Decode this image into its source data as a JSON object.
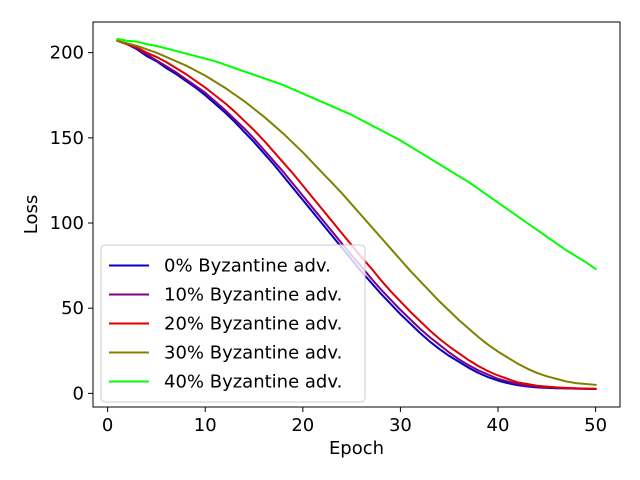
{
  "chart_data": {
    "type": "line",
    "title": "",
    "xlabel": "Epoch",
    "ylabel": "Loss",
    "xlim": [
      -1.5,
      52.5
    ],
    "ylim": [
      -8,
      218
    ],
    "xticks": [
      0,
      10,
      20,
      30,
      40,
      50
    ],
    "yticks": [
      0,
      50,
      100,
      150,
      200
    ],
    "grid": false,
    "legend_position": "lower-left",
    "x": [
      1,
      2,
      3,
      4,
      5,
      6,
      7,
      8,
      9,
      10,
      11,
      12,
      13,
      14,
      15,
      16,
      17,
      18,
      19,
      20,
      21,
      22,
      23,
      24,
      25,
      26,
      27,
      28,
      29,
      30,
      31,
      32,
      33,
      34,
      35,
      36,
      37,
      38,
      39,
      40,
      41,
      42,
      43,
      44,
      45,
      46,
      47,
      48,
      49,
      50
    ],
    "series": [
      {
        "name": "0% Byzantine adv.",
        "color": "#0000cc",
        "values": [
          207.0,
          205.0,
          202.0,
          198.0,
          195.0,
          191.0,
          187.5,
          183.5,
          179.5,
          175.0,
          170.0,
          165.0,
          159.5,
          153.5,
          147.5,
          141.0,
          134.5,
          127.5,
          120.5,
          113.5,
          106.5,
          99.5,
          92.5,
          85.5,
          78.5,
          71.5,
          65.0,
          58.5,
          52.5,
          46.5,
          41.0,
          35.5,
          30.5,
          26.0,
          22.0,
          18.5,
          15.0,
          12.0,
          9.5,
          7.5,
          6.0,
          4.8,
          4.0,
          3.5,
          3.2,
          3.0,
          2.9,
          2.8,
          2.7,
          2.6
        ]
      },
      {
        "name": "10% Byzantine adv.",
        "color": "#800080",
        "values": [
          207.0,
          205.0,
          202.5,
          199.0,
          195.5,
          192.0,
          188.5,
          184.5,
          180.5,
          176.5,
          171.5,
          166.5,
          161.0,
          155.5,
          149.5,
          143.0,
          136.5,
          130.0,
          123.0,
          116.0,
          109.0,
          102.0,
          95.0,
          88.0,
          81.0,
          74.5,
          67.5,
          61.0,
          55.0,
          49.0,
          43.5,
          38.0,
          33.0,
          28.5,
          24.0,
          20.0,
          16.5,
          13.5,
          11.0,
          8.5,
          7.0,
          5.5,
          4.5,
          4.0,
          3.5,
          3.2,
          3.0,
          2.8,
          2.7,
          2.6
        ]
      },
      {
        "name": "20% Byzantine adv.",
        "color": "#e00000",
        "values": [
          207.0,
          205.0,
          203.0,
          200.0,
          197.5,
          194.5,
          191.0,
          187.5,
          183.5,
          179.5,
          175.0,
          170.5,
          165.5,
          160.0,
          154.5,
          148.5,
          142.0,
          135.5,
          129.0,
          122.0,
          115.0,
          108.0,
          101.0,
          94.0,
          87.0,
          80.0,
          73.5,
          66.5,
          60.0,
          54.0,
          48.0,
          42.5,
          37.0,
          32.0,
          27.5,
          23.5,
          19.5,
          16.0,
          13.0,
          10.5,
          8.5,
          6.5,
          5.5,
          4.5,
          4.0,
          3.5,
          3.2,
          3.0,
          2.8,
          2.7
        ]
      },
      {
        "name": "30% Byzantine adv.",
        "color": "#808000",
        "values": [
          207.0,
          205.5,
          204.0,
          202.0,
          200.0,
          197.5,
          195.0,
          192.5,
          189.5,
          186.5,
          183.0,
          179.5,
          175.5,
          171.5,
          167.0,
          162.5,
          157.5,
          152.5,
          147.0,
          141.5,
          135.5,
          129.5,
          123.5,
          117.5,
          111.0,
          104.5,
          98.0,
          91.5,
          85.0,
          78.5,
          72.0,
          66.0,
          60.0,
          54.0,
          48.5,
          43.0,
          38.0,
          33.0,
          28.5,
          24.5,
          21.0,
          17.5,
          14.5,
          12.0,
          10.0,
          8.5,
          7.0,
          6.0,
          5.5,
          5.0
        ]
      },
      {
        "name": "40% Byzantine adv.",
        "color": "#00ff00",
        "values": [
          208.0,
          207.0,
          206.5,
          205.0,
          204.0,
          202.5,
          201.0,
          199.5,
          198.0,
          196.5,
          195.0,
          193.0,
          191.0,
          189.0,
          187.0,
          185.0,
          183.0,
          181.0,
          178.5,
          176.0,
          173.5,
          171.0,
          168.5,
          166.0,
          163.5,
          160.5,
          157.5,
          154.5,
          151.5,
          148.5,
          145.0,
          141.5,
          138.0,
          134.5,
          131.0,
          127.5,
          124.0,
          120.0,
          116.0,
          112.0,
          108.0,
          104.0,
          100.0,
          96.0,
          92.0,
          88.0,
          84.0,
          80.5,
          77.0,
          73.0
        ]
      }
    ]
  }
}
